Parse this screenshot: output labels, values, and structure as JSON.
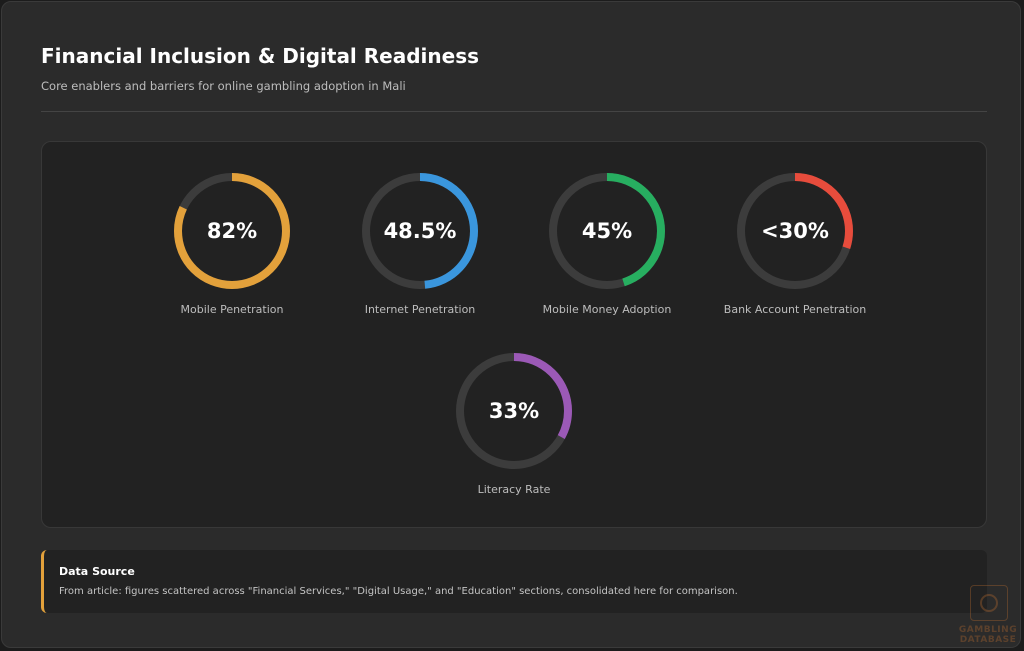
{
  "header": {
    "title": "Financial Inclusion & Digital Readiness",
    "subtitle": "Core enablers and barriers for online gambling adoption in Mali"
  },
  "chart_data": {
    "type": "donut-gauges",
    "track_color": "#3c3c3c",
    "gauges": [
      {
        "label": "Mobile Penetration",
        "value": 82,
        "display": "82%",
        "color": "#e3a13b"
      },
      {
        "label": "Internet Penetration",
        "value": 48.5,
        "display": "48.5%",
        "color": "#3a96dd"
      },
      {
        "label": "Mobile Money Adoption",
        "value": 45,
        "display": "45%",
        "color": "#27ae60"
      },
      {
        "label": "Bank Account Penetration",
        "value": 30,
        "display": "<30%",
        "color": "#e74c3c"
      },
      {
        "label": "Literacy Rate",
        "value": 33,
        "display": "33%",
        "color": "#9b59b6"
      }
    ]
  },
  "note": {
    "title": "Data Source",
    "text": "From article: figures scattered across \"Financial Services,\" \"Digital Usage,\" and \"Education\" sections, consolidated here for comparison.",
    "accent_color": "#e3a13b"
  },
  "watermark": {
    "line1": "GAMBLING",
    "line2": "DATABASE"
  }
}
